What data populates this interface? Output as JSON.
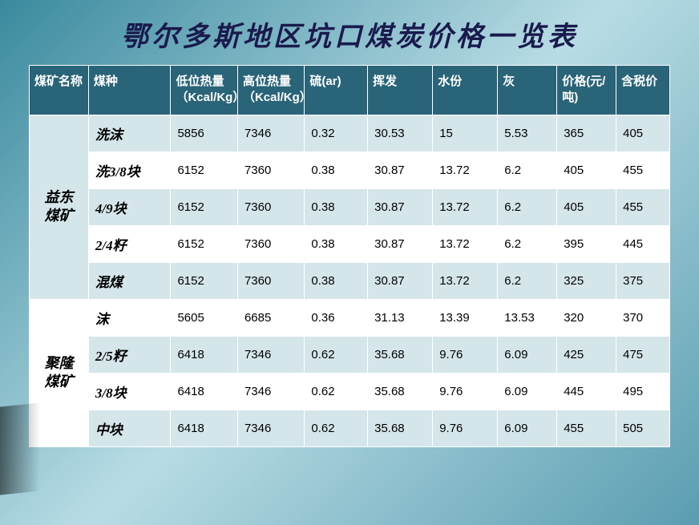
{
  "title": "鄂尔多斯地区坑口煤炭价格一览表",
  "columns": [
    "煤矿名称",
    "煤种",
    "低位热量（Kcal/Kg）",
    "高位热量（Kcal/Kg）",
    "硫(ar)",
    "挥发",
    "水份",
    "灰",
    "价格(元/吨)",
    "含税价"
  ],
  "groups": [
    {
      "mine": "益东煤矿",
      "rows": [
        {
          "type": "洗沫",
          "low": "5856",
          "high": "7346",
          "s": "0.32",
          "vol": "30.53",
          "water": "15",
          "ash": "5.53",
          "price": "365",
          "tax": "405"
        },
        {
          "type": "洗3/8块",
          "low": "6152",
          "high": "7360",
          "s": "0.38",
          "vol": "30.87",
          "water": "13.72",
          "ash": "6.2",
          "price": "405",
          "tax": "455"
        },
        {
          "type": "4/9块",
          "low": "6152",
          "high": "7360",
          "s": "0.38",
          "vol": "30.87",
          "water": "13.72",
          "ash": "6.2",
          "price": "405",
          "tax": "455"
        },
        {
          "type": "2/4籽",
          "low": "6152",
          "high": "7360",
          "s": "0.38",
          "vol": "30.87",
          "water": "13.72",
          "ash": "6.2",
          "price": "395",
          "tax": "445"
        },
        {
          "type": "混煤",
          "low": "6152",
          "high": "7360",
          "s": "0.38",
          "vol": "30.87",
          "water": "13.72",
          "ash": "6.2",
          "price": "325",
          "tax": "375"
        }
      ]
    },
    {
      "mine": "聚隆煤矿",
      "rows": [
        {
          "type": "沫",
          "low": "5605",
          "high": "6685",
          "s": "0.36",
          "vol": "31.13",
          "water": "13.39",
          "ash": "13.53",
          "price": "320",
          "tax": "370"
        },
        {
          "type": "2/5籽",
          "low": "6418",
          "high": "7346",
          "s": "0.62",
          "vol": "35.68",
          "water": "9.76",
          "ash": "6.09",
          "price": "425",
          "tax": "475"
        },
        {
          "type": "3/8块",
          "low": "6418",
          "high": "7346",
          "s": "0.62",
          "vol": "35.68",
          "water": "9.76",
          "ash": "6.09",
          "price": "445",
          "tax": "495"
        },
        {
          "type": "中块",
          "low": "6418",
          "high": "7346",
          "s": "0.62",
          "vol": "35.68",
          "water": "9.76",
          "ash": "6.09",
          "price": "455",
          "tax": "505"
        }
      ]
    }
  ],
  "style": {
    "header_bg": "#2a6478",
    "header_fg": "#ffffff",
    "row_alt_bg": "#d5e6ea",
    "row_plain_bg": "#ffffff",
    "title_color": "#1a1a4d"
  }
}
